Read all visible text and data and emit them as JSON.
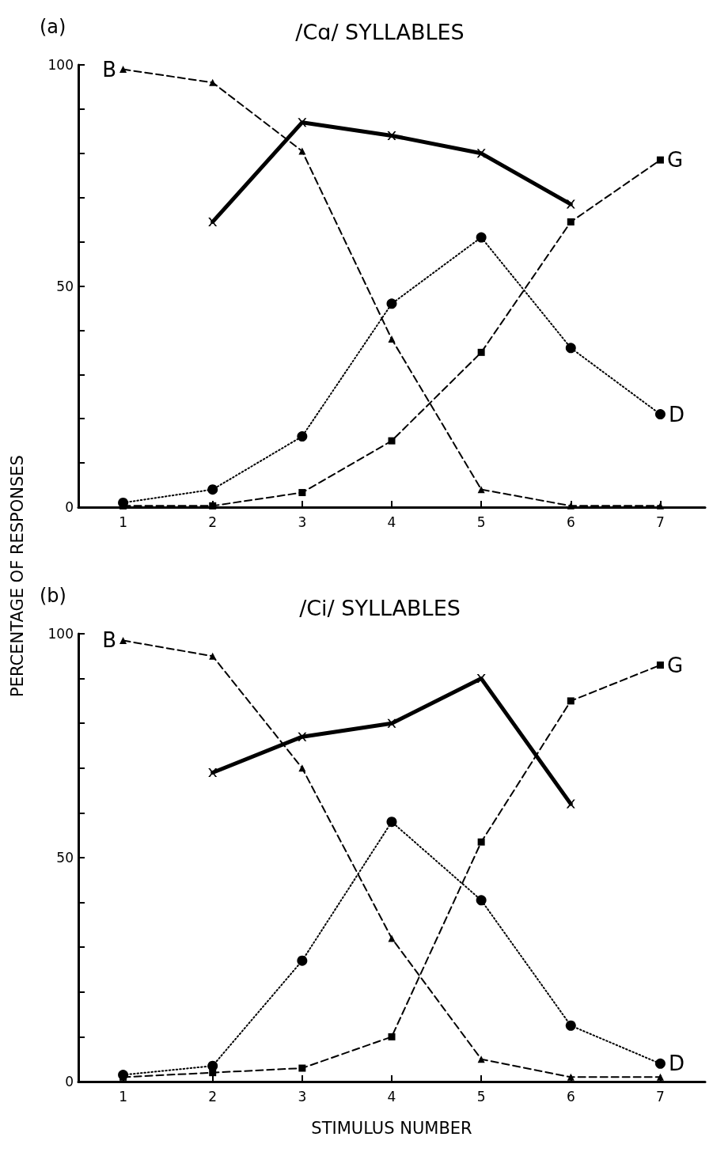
{
  "chart_data": [
    {
      "type": "line",
      "title": "/Cɑ/ SYLLABLES",
      "ylabel": "PERCENTAGE OF RESPONSES",
      "annotations": [
        "(a)"
      ],
      "categories": [
        "1",
        "2",
        "3",
        "4",
        "5",
        "6",
        "7"
      ],
      "ylim": [
        0,
        100
      ],
      "yticks": [
        0,
        {
          "value": 10,
          "label": null
        },
        {
          "value": 20,
          "label": null
        },
        {
          "value": 30,
          "label": null
        },
        {
          "value": 40,
          "label": null
        },
        50,
        {
          "value": 60,
          "label": null
        },
        {
          "value": 70,
          "label": null
        },
        {
          "value": 80,
          "label": null
        },
        {
          "value": 90,
          "label": null
        },
        100
      ],
      "grid": false,
      "legend": false,
      "series": [
        {
          "name": "B",
          "color": "#000000",
          "marker": "triangle",
          "line_style": "dashed",
          "values": [
            99,
            96,
            80.5,
            38,
            4,
            0.3,
            0.3
          ]
        },
        {
          "color": "#000000",
          "marker": "cross",
          "line_style": "solid",
          "values": [
            null,
            64.5,
            87,
            84,
            80,
            68.5,
            null
          ]
        },
        {
          "name": "D",
          "color": "#000000",
          "marker": "circle",
          "line_style": "dotted",
          "values": [
            1,
            4,
            16,
            46,
            61,
            36,
            21
          ]
        },
        {
          "name": "G",
          "color": "#000000",
          "marker": "square",
          "line_style": "dashed",
          "values": [
            0.3,
            0.3,
            3.3,
            15,
            35,
            64.5,
            78.5
          ]
        }
      ]
    },
    {
      "type": "line",
      "title": "/Ci/ SYLLABLES",
      "xlabel": "STIMULUS NUMBER",
      "annotations": [
        "(b)"
      ],
      "categories": [
        "1",
        "2",
        "3",
        "4",
        "5",
        "6",
        "7"
      ],
      "ylim": [
        0,
        100
      ],
      "yticks": [
        0,
        {
          "value": 10,
          "label": null
        },
        {
          "value": 20,
          "label": null
        },
        {
          "value": 30,
          "label": null
        },
        {
          "value": 40,
          "label": null
        },
        50,
        {
          "value": 60,
          "label": null
        },
        {
          "value": 70,
          "label": null
        },
        {
          "value": 80,
          "label": null
        },
        {
          "value": 90,
          "label": null
        },
        100
      ],
      "grid": false,
      "legend": false,
      "series": [
        {
          "name": "B",
          "color": "#000000",
          "marker": "triangle",
          "line_style": "dashed",
          "values": [
            98.5,
            95,
            70,
            32,
            5,
            1,
            1
          ]
        },
        {
          "color": "#000000",
          "marker": "cross",
          "line_style": "solid",
          "values": [
            null,
            69,
            77,
            80,
            90,
            62,
            null
          ]
        },
        {
          "name": "D",
          "color": "#000000",
          "marker": "circle",
          "line_style": "dotted",
          "values": [
            1.5,
            3.5,
            27,
            58,
            40.5,
            12.5,
            4
          ]
        },
        {
          "name": "G",
          "color": "#000000",
          "marker": "square",
          "line_style": "dashed",
          "values": [
            1,
            2,
            3,
            10,
            53.5,
            85,
            93
          ]
        }
      ]
    }
  ]
}
